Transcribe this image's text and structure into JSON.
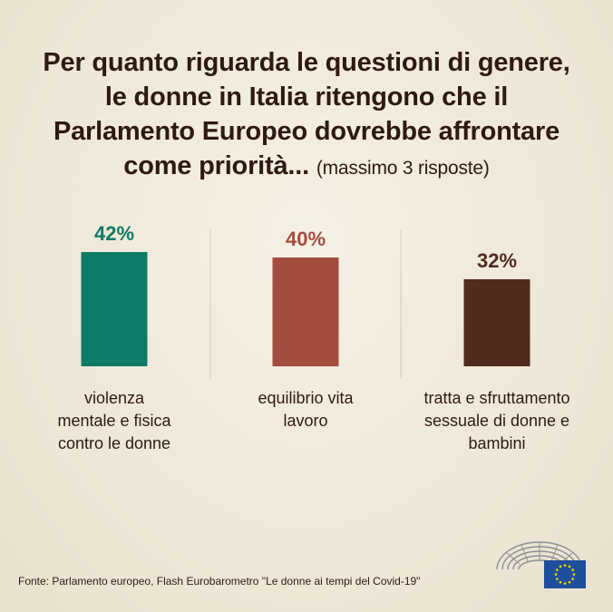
{
  "title": {
    "lines": [
      "Per quanto riguarda le questioni di genere,",
      "le donne in Italia ritengono che il",
      "Parlamento Europeo dovrebbe affrontare"
    ],
    "last_line_bold": "come priorità...",
    "last_line_note": "(massimo 3 risposte)"
  },
  "chart_data": {
    "type": "bar",
    "title": "Per quanto riguarda le questioni di genere, le donne in Italia ritengono che il Parlamento Europeo dovrebbe affrontare come priorità... (massimo 3 risposte)",
    "categories": [
      "violenza mentale e fisica contro le donne",
      "equilibrio vita lavoro",
      "tratta e sfruttamento sessuale di donne e bambini"
    ],
    "category_lines": [
      [
        "violenza",
        "mentale e fisica",
        "contro le donne"
      ],
      [
        "equilibrio vita",
        "lavoro"
      ],
      [
        "tratta e sfruttamento",
        "sessuale di donne e",
        "bambini"
      ]
    ],
    "values": [
      42,
      40,
      32
    ],
    "value_labels": [
      "42%",
      "40%",
      "32%"
    ],
    "unit": "%",
    "colors": [
      "#0d7b66",
      "#a44c40",
      "#4e2a1f"
    ],
    "label_colors": [
      "#0d7b66",
      "#a44c40",
      "#4e2a1f"
    ],
    "ylim": [
      0,
      100
    ],
    "xlabel": "",
    "ylabel": ""
  },
  "source": "Fonte: Parlamento europeo, Flash Eurobarometro \"Le donne ai tempi del Covid-19\"",
  "logo": {
    "icon": "european-parliament-hemicycle-eu-flag-icon",
    "flag_color": "#1f4f9c",
    "star_color": "#ffdd00"
  }
}
